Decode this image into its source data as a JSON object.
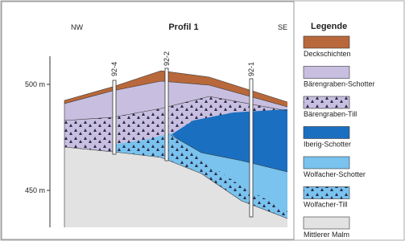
{
  "header": {
    "title": "Profil 1",
    "left": "NW",
    "right": "SE"
  },
  "elevations": [
    "500 m",
    "450 m"
  ],
  "boreholes": [
    "92-4",
    "92-2",
    "92-1"
  ],
  "legend": {
    "title": "Legende",
    "items": [
      "Deckschichten",
      "Bärengraben-Schotter",
      "Bärengraben-Till",
      "Iberig-Schotter",
      "Wolfacher-Schotter",
      "Wolfacher-Till",
      "Mittlerer Malm"
    ]
  }
}
